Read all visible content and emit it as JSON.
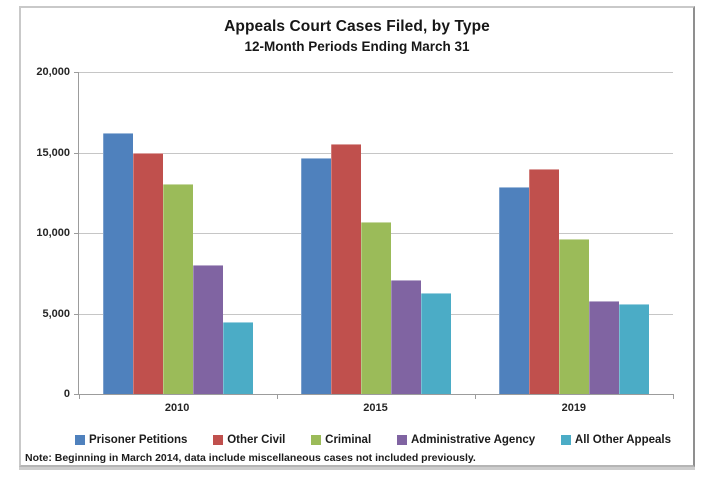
{
  "header": {
    "title": "Appeals Court Cases Filed, by Type",
    "subtitle": "12-Month Periods Ending March 31"
  },
  "note": "Note: Beginning in March 2014, data include miscellaneous cases not included previously.",
  "axis_colors": {
    "axis_line": "#9c9c9c",
    "gridline": "#c6c6c6",
    "text": "#262626"
  },
  "chart_data": {
    "type": "bar",
    "title": "Appeals Court Cases Filed, by Type",
    "subtitle": "12-Month Periods Ending March 31",
    "categories": [
      "2010",
      "2015",
      "2019"
    ],
    "series": [
      {
        "name": "Prisoner Petitions",
        "color": "#4F81BD",
        "values": [
          16200,
          14650,
          12850
        ]
      },
      {
        "name": "Other Civil",
        "color": "#C0504D",
        "values": [
          15000,
          15550,
          13950
        ]
      },
      {
        "name": "Criminal",
        "color": "#9BBB59",
        "values": [
          13050,
          10700,
          9650
        ]
      },
      {
        "name": "Administrative Agency",
        "color": "#8064A2",
        "values": [
          8000,
          7100,
          5800
        ]
      },
      {
        "name": "All Other Appeals",
        "color": "#4BACC6",
        "values": [
          4500,
          6300,
          5600
        ]
      }
    ],
    "xlabel": "",
    "ylabel": "",
    "ylim": [
      0,
      20000
    ],
    "ytick_interval": 5000,
    "ytick_labels": [
      "0",
      "5,000",
      "10,000",
      "15,000",
      "20,000"
    ],
    "grid": "horizontal-only",
    "legend_position": "bottom"
  }
}
